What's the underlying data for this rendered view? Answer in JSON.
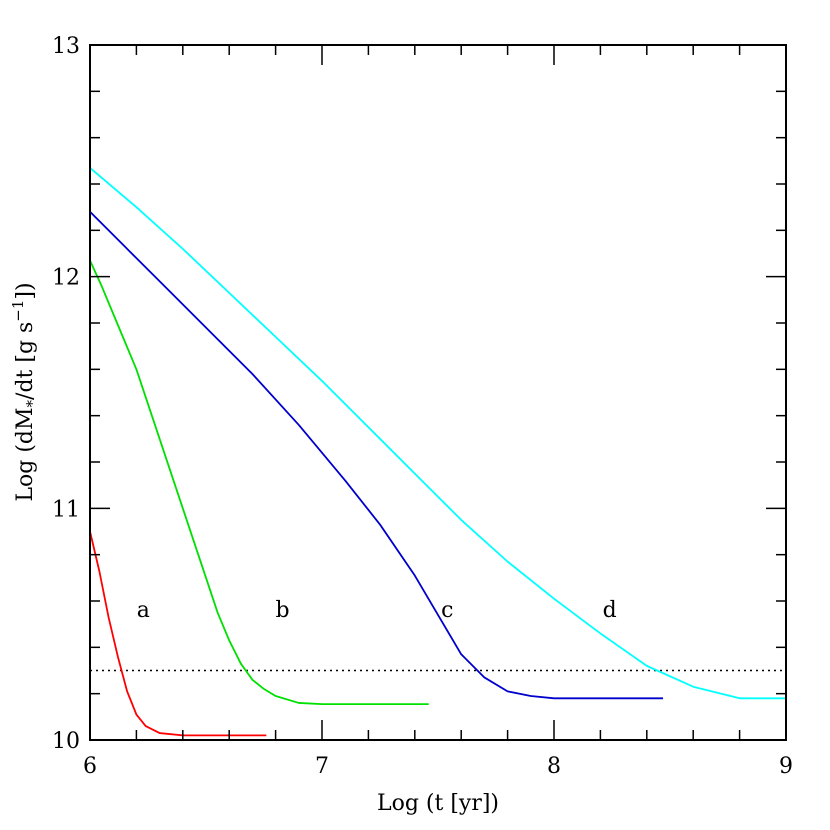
{
  "chart_data": {
    "type": "line",
    "title": "",
    "xlabel": "Log (t [yr])",
    "ylabel": {
      "pre": "Log (dM",
      "sub": "*",
      "mid": "/dt [g s",
      "sup": "−1",
      "post": "])"
    },
    "xlim": [
      6,
      9
    ],
    "ylim": [
      10,
      13
    ],
    "x_ticks": [
      6,
      7,
      8,
      9
    ],
    "y_ticks": [
      10,
      11,
      12,
      13
    ],
    "grid": false,
    "legend": "none",
    "series": [
      {
        "label": "a",
        "color": "#ff0000",
        "label_at": [
          6.23,
          10.53
        ],
        "points": [
          [
            6.0,
            10.9
          ],
          [
            6.04,
            10.73
          ],
          [
            6.08,
            10.53
          ],
          [
            6.12,
            10.36
          ],
          [
            6.16,
            10.21
          ],
          [
            6.2,
            10.11
          ],
          [
            6.24,
            10.06
          ],
          [
            6.3,
            10.03
          ],
          [
            6.4,
            10.02
          ],
          [
            6.55,
            10.02
          ],
          [
            6.76,
            10.02
          ]
        ]
      },
      {
        "label": "b",
        "color": "#00e000",
        "label_at": [
          6.83,
          10.53
        ],
        "points": [
          [
            6.0,
            12.07
          ],
          [
            6.05,
            11.96
          ],
          [
            6.1,
            11.84
          ],
          [
            6.15,
            11.72
          ],
          [
            6.2,
            11.6
          ],
          [
            6.25,
            11.45
          ],
          [
            6.3,
            11.3
          ],
          [
            6.35,
            11.15
          ],
          [
            6.4,
            11.0
          ],
          [
            6.45,
            10.85
          ],
          [
            6.5,
            10.7
          ],
          [
            6.55,
            10.55
          ],
          [
            6.6,
            10.43
          ],
          [
            6.65,
            10.33
          ],
          [
            6.7,
            10.26
          ],
          [
            6.75,
            10.22
          ],
          [
            6.8,
            10.19
          ],
          [
            6.9,
            10.16
          ],
          [
            7.0,
            10.155
          ],
          [
            7.2,
            10.155
          ],
          [
            7.46,
            10.155
          ]
        ]
      },
      {
        "label": "c",
        "color": "#0000cc",
        "label_at": [
          7.54,
          10.53
        ],
        "points": [
          [
            6.0,
            12.28
          ],
          [
            6.15,
            12.13
          ],
          [
            6.3,
            11.98
          ],
          [
            6.5,
            11.78
          ],
          [
            6.7,
            11.58
          ],
          [
            6.9,
            11.36
          ],
          [
            7.1,
            11.12
          ],
          [
            7.25,
            10.93
          ],
          [
            7.4,
            10.71
          ],
          [
            7.5,
            10.54
          ],
          [
            7.6,
            10.37
          ],
          [
            7.7,
            10.27
          ],
          [
            7.8,
            10.21
          ],
          [
            7.9,
            10.19
          ],
          [
            8.0,
            10.18
          ],
          [
            8.2,
            10.18
          ],
          [
            8.47,
            10.18
          ]
        ]
      },
      {
        "label": "d",
        "color": "#00ffff",
        "label_at": [
          8.24,
          10.53
        ],
        "points": [
          [
            6.0,
            12.47
          ],
          [
            6.2,
            12.3
          ],
          [
            6.4,
            12.12
          ],
          [
            6.6,
            11.93
          ],
          [
            6.8,
            11.74
          ],
          [
            7.0,
            11.55
          ],
          [
            7.2,
            11.35
          ],
          [
            7.4,
            11.15
          ],
          [
            7.6,
            10.95
          ],
          [
            7.8,
            10.77
          ],
          [
            8.0,
            10.61
          ],
          [
            8.2,
            10.46
          ],
          [
            8.4,
            10.32
          ],
          [
            8.6,
            10.23
          ],
          [
            8.8,
            10.18
          ],
          [
            9.0,
            10.18
          ]
        ]
      }
    ],
    "reference_line": {
      "y": 10.3,
      "color": "#000000",
      "style": "dotted"
    }
  }
}
